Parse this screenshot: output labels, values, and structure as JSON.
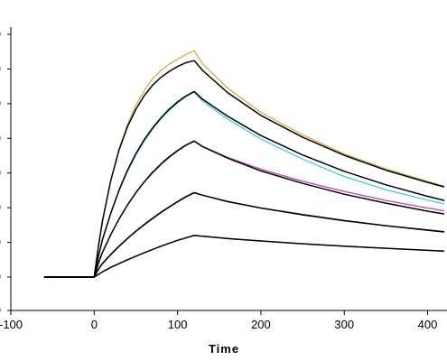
{
  "chart_data": {
    "type": "line",
    "title": "",
    "xlabel": "Time",
    "ylabel": "",
    "xlim": [
      -100,
      420
    ],
    "ylim": [
      -10,
      70
    ],
    "x_ticks": [
      -100,
      0,
      100,
      200,
      300,
      400
    ],
    "x_tick_labels": [
      "-100",
      "0",
      "100",
      "200",
      "300",
      "400"
    ],
    "y_ticks": [
      0,
      10,
      20,
      30,
      40,
      50,
      60,
      70
    ],
    "y_tick_labels": [
      "0",
      "0",
      "0",
      "0",
      "0",
      "0",
      "0",
      "0"
    ],
    "grid": false,
    "series": [
      {
        "role": "measured",
        "color": "#d8aa4c",
        "points": [
          [
            -60,
            0
          ],
          [
            0,
            0
          ],
          [
            5,
            9
          ],
          [
            10,
            16.5
          ],
          [
            20,
            28
          ],
          [
            30,
            37
          ],
          [
            40,
            44
          ],
          [
            50,
            49.5
          ],
          [
            60,
            53.8
          ],
          [
            70,
            57.2
          ],
          [
            80,
            59.6
          ],
          [
            90,
            61.4
          ],
          [
            100,
            62.8
          ],
          [
            110,
            64.2
          ],
          [
            120,
            65.3
          ],
          [
            130,
            61.5
          ],
          [
            160,
            54.5
          ],
          [
            200,
            47.5
          ],
          [
            250,
            41
          ],
          [
            300,
            35.5
          ],
          [
            350,
            31.2
          ],
          [
            400,
            27.6
          ],
          [
            420,
            26.2
          ]
        ]
      },
      {
        "role": "measured",
        "color": "#3ccfd1",
        "points": [
          [
            -60,
            0
          ],
          [
            0,
            0
          ],
          [
            5,
            6
          ],
          [
            10,
            11
          ],
          [
            20,
            18.5
          ],
          [
            30,
            25
          ],
          [
            40,
            30.5
          ],
          [
            50,
            35.2
          ],
          [
            60,
            39.2
          ],
          [
            70,
            42.6
          ],
          [
            80,
            45.6
          ],
          [
            90,
            48.1
          ],
          [
            100,
            50.2
          ],
          [
            110,
            52
          ],
          [
            120,
            53.3
          ],
          [
            130,
            50.8
          ],
          [
            160,
            45.6
          ],
          [
            200,
            39.8
          ],
          [
            250,
            34
          ],
          [
            300,
            29
          ],
          [
            350,
            25.2
          ],
          [
            400,
            22.2
          ],
          [
            420,
            21.1
          ]
        ]
      },
      {
        "role": "measured",
        "color": "#c040b0",
        "points": [
          [
            -60,
            0
          ],
          [
            0,
            0
          ],
          [
            5,
            4
          ],
          [
            10,
            7.2
          ],
          [
            20,
            12.3
          ],
          [
            30,
            16.8
          ],
          [
            40,
            20.8
          ],
          [
            50,
            24.4
          ],
          [
            60,
            27.5
          ],
          [
            70,
            30.3
          ],
          [
            80,
            32.7
          ],
          [
            90,
            34.8
          ],
          [
            100,
            36.6
          ],
          [
            110,
            38.1
          ],
          [
            120,
            39.3
          ],
          [
            130,
            37.7
          ],
          [
            160,
            34.5
          ],
          [
            200,
            31.1
          ],
          [
            250,
            27.6
          ],
          [
            300,
            24.7
          ],
          [
            350,
            22.1
          ],
          [
            400,
            19.9
          ],
          [
            420,
            19.1
          ]
        ]
      },
      {
        "role": "measured",
        "color": "#1f2bd0",
        "points": [
          [
            -60,
            0
          ],
          [
            0,
            0
          ],
          [
            5,
            2.3
          ],
          [
            10,
            4
          ],
          [
            20,
            6.6
          ],
          [
            30,
            9
          ],
          [
            40,
            11.2
          ],
          [
            50,
            13.3
          ],
          [
            60,
            15.2
          ],
          [
            70,
            17
          ],
          [
            80,
            18.7
          ],
          [
            90,
            20.3
          ],
          [
            100,
            21.8
          ],
          [
            110,
            23.2
          ],
          [
            120,
            24.4
          ],
          [
            130,
            23.6
          ],
          [
            160,
            21.7
          ],
          [
            200,
            19.9
          ],
          [
            250,
            17.9
          ],
          [
            300,
            16.2
          ],
          [
            350,
            14.8
          ],
          [
            400,
            13.6
          ],
          [
            420,
            13.1
          ]
        ]
      },
      {
        "role": "measured",
        "color": "#2e7d32",
        "points": [
          [
            -60,
            0
          ],
          [
            0,
            0
          ],
          [
            10,
            1.5
          ],
          [
            20,
            2.8
          ],
          [
            40,
            5
          ],
          [
            60,
            7
          ],
          [
            80,
            8.9
          ],
          [
            100,
            10.6
          ],
          [
            120,
            12
          ],
          [
            130,
            11.8
          ],
          [
            160,
            11.1
          ],
          [
            200,
            10.4
          ],
          [
            250,
            9.6
          ],
          [
            300,
            8.9
          ],
          [
            350,
            8.3
          ],
          [
            400,
            7.7
          ],
          [
            420,
            7.5
          ]
        ]
      },
      {
        "role": "fit",
        "color": "#000000",
        "points": [
          [
            -60,
            0
          ],
          [
            0,
            0
          ],
          [
            5,
            8.7
          ],
          [
            10,
            16.2
          ],
          [
            20,
            28
          ],
          [
            30,
            36.8
          ],
          [
            40,
            43.4
          ],
          [
            50,
            48.4
          ],
          [
            60,
            52.3
          ],
          [
            70,
            55.3
          ],
          [
            80,
            57.6
          ],
          [
            90,
            59.3
          ],
          [
            100,
            60.7
          ],
          [
            110,
            61.8
          ],
          [
            120,
            62.4
          ],
          [
            130,
            59.6
          ],
          [
            160,
            53.2
          ],
          [
            200,
            46.6
          ],
          [
            250,
            40.3
          ],
          [
            300,
            35.1
          ],
          [
            350,
            30.8
          ],
          [
            400,
            27.3
          ],
          [
            420,
            26
          ]
        ]
      },
      {
        "role": "fit",
        "color": "#000000",
        "points": [
          [
            -60,
            0
          ],
          [
            0,
            0
          ],
          [
            5,
            5.8
          ],
          [
            10,
            10.8
          ],
          [
            20,
            18.5
          ],
          [
            30,
            25.2
          ],
          [
            40,
            30.8
          ],
          [
            50,
            35.6
          ],
          [
            60,
            39.6
          ],
          [
            70,
            43
          ],
          [
            80,
            45.9
          ],
          [
            90,
            48.4
          ],
          [
            100,
            50.5
          ],
          [
            110,
            52.2
          ],
          [
            120,
            53.5
          ],
          [
            130,
            51.3
          ],
          [
            160,
            46.4
          ],
          [
            200,
            40.8
          ],
          [
            250,
            35.2
          ],
          [
            300,
            30.5
          ],
          [
            350,
            26.6
          ],
          [
            400,
            23.3
          ],
          [
            420,
            22.1
          ]
        ]
      },
      {
        "role": "fit",
        "color": "#000000",
        "points": [
          [
            -60,
            0
          ],
          [
            0,
            0
          ],
          [
            5,
            3.9
          ],
          [
            10,
            7.1
          ],
          [
            20,
            12.3
          ],
          [
            30,
            16.8
          ],
          [
            40,
            20.8
          ],
          [
            50,
            24.3
          ],
          [
            60,
            27.4
          ],
          [
            70,
            30.1
          ],
          [
            80,
            32.5
          ],
          [
            90,
            34.6
          ],
          [
            100,
            36.4
          ],
          [
            110,
            38
          ],
          [
            120,
            39.2
          ],
          [
            130,
            37.6
          ],
          [
            160,
            34.3
          ],
          [
            200,
            30.6
          ],
          [
            250,
            27
          ],
          [
            300,
            23.9
          ],
          [
            350,
            21.3
          ],
          [
            400,
            19
          ],
          [
            420,
            18.2
          ]
        ]
      },
      {
        "role": "fit",
        "color": "#000000",
        "points": [
          [
            -60,
            0
          ],
          [
            0,
            0
          ],
          [
            5,
            2.2
          ],
          [
            10,
            3.9
          ],
          [
            20,
            6.5
          ],
          [
            30,
            8.9
          ],
          [
            40,
            11.1
          ],
          [
            50,
            13.2
          ],
          [
            60,
            15.1
          ],
          [
            70,
            16.9
          ],
          [
            80,
            18.6
          ],
          [
            90,
            20.2
          ],
          [
            100,
            21.7
          ],
          [
            110,
            23.1
          ],
          [
            120,
            24.3
          ],
          [
            130,
            23.6
          ],
          [
            160,
            21.8
          ],
          [
            200,
            19.9
          ],
          [
            250,
            18
          ],
          [
            300,
            16.3
          ],
          [
            350,
            14.8
          ],
          [
            400,
            13.5
          ],
          [
            420,
            13
          ]
        ]
      },
      {
        "role": "fit",
        "color": "#000000",
        "points": [
          [
            -60,
            0
          ],
          [
            0,
            0
          ],
          [
            10,
            1.5
          ],
          [
            20,
            2.8
          ],
          [
            40,
            5
          ],
          [
            60,
            7
          ],
          [
            80,
            8.9
          ],
          [
            100,
            10.6
          ],
          [
            120,
            12
          ],
          [
            130,
            11.8
          ],
          [
            160,
            11.1
          ],
          [
            200,
            10.4
          ],
          [
            250,
            9.6
          ],
          [
            300,
            8.9
          ],
          [
            350,
            8.3
          ],
          [
            400,
            7.7
          ],
          [
            420,
            7.5
          ]
        ]
      }
    ]
  }
}
